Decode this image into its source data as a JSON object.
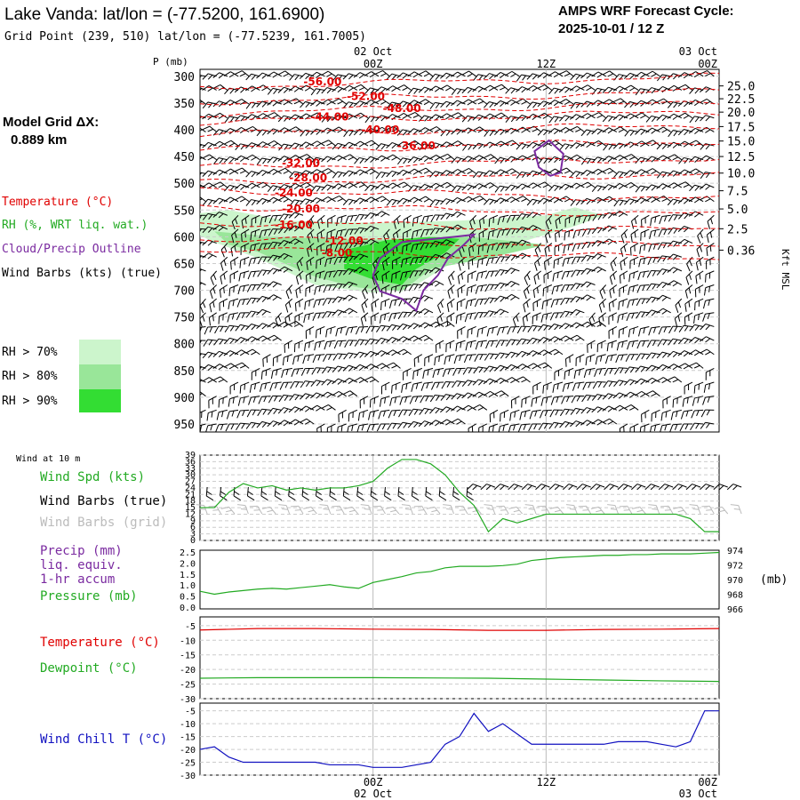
{
  "header": {
    "title": "Lake Vanda:  lat/lon = (-77.5200, 161.6900)",
    "subtitle": "Grid Point (239, 510) lat/lon = (-77.5239, 161.7005)",
    "cycle_title": "AMPS WRF Forecast Cycle:",
    "cycle_value": "2025-10-01 / 12  Z"
  },
  "side": {
    "model_grid_label": "Model Grid ΔX:",
    "model_grid_value": "0.889 km",
    "legend_temperature": "Temperature (°C)",
    "legend_rh": "RH (%, WRT liq. wat.)",
    "legend_cloud": "Cloud/Precip Outline",
    "legend_wind": "Wind Barbs (kts) (true)",
    "rh70": "RH > 70%",
    "rh80": "RH > 80%",
    "rh90": "RH > 90%",
    "wind_at": "Wind at 10 m",
    "wind_spd": "Wind Spd (kts)",
    "wind_barbs_true": "Wind Barbs (true)",
    "wind_barbs_grid": "Wind Barbs (grid)",
    "precip1": "Precip (mm)",
    "precip2": "liq. equiv.",
    "precip3": "1-hr accum",
    "pressure": "Pressure (mb)",
    "mb_unit": "(mb)",
    "temp": "Temperature (°C)",
    "dewpoint": "Dewpoint (°C)",
    "wind_chill": "Wind Chill T (°C)",
    "kft_label": "Kft MSL",
    "p_label": "P (mb)"
  },
  "colors": {
    "temp": "#e00000",
    "rh": "#22aa22",
    "cloud": "#7a2aa0",
    "chill": "#1010c0",
    "grid_barb": "#bbbbbb",
    "rh70": "#ccf5cc",
    "rh80": "#99e699",
    "rh90": "#33dd33"
  },
  "chart_data": [
    {
      "type": "time-height cross section",
      "time_labels": [
        {
          "hour": 12,
          "top": "02 Oct",
          "bottom": "00Z"
        },
        {
          "hour": 24,
          "top": "",
          "bottom": "12Z"
        },
        {
          "hour": 36,
          "top": "03 Oct",
          "bottom": "00Z"
        }
      ],
      "x_range_hours": [
        0,
        36
      ],
      "pressure_ticks": [
        "300",
        "350",
        "400",
        "450",
        "500",
        "550",
        "600",
        "650",
        "700",
        "750",
        "800",
        "850",
        "900",
        "950"
      ],
      "height_ticks": [
        {
          "p": 318,
          "label": "25.0"
        },
        {
          "p": 342,
          "label": "22.5"
        },
        {
          "p": 367,
          "label": "20.0"
        },
        {
          "p": 394,
          "label": "17.5"
        },
        {
          "p": 421,
          "label": "15.0"
        },
        {
          "p": 450,
          "label": "12.5"
        },
        {
          "p": 481,
          "label": "10.0"
        },
        {
          "p": 514,
          "label": "7.5"
        },
        {
          "p": 548,
          "label": "5.0"
        },
        {
          "p": 585,
          "label": "2.5"
        },
        {
          "p": 625,
          "label": "0.36"
        }
      ],
      "isotherms": [
        {
          "label": "-56.00",
          "p": 310
        },
        {
          "label": "-52.00",
          "p": 338
        },
        {
          "label": "-48.00",
          "p": 360
        },
        {
          "label": "-44.00",
          "p": 376
        },
        {
          "label": "-40.00",
          "p": 400
        },
        {
          "label": "-36.00",
          "p": 430
        },
        {
          "label": "-32.00",
          "p": 462
        },
        {
          "label": "-28.00",
          "p": 490
        },
        {
          "label": "-24.00",
          "p": 518
        },
        {
          "label": "-20.00",
          "p": 548
        },
        {
          "label": "-16.00",
          "p": 578
        },
        {
          "label": "-12.00",
          "p": 608
        },
        {
          "label": "-8.00",
          "p": 630
        }
      ],
      "rh_over_70_region": "approx. 560-710 mb from hour 0 to hour 27",
      "cloud_outlines": [
        "hour 12-19, 600-760 mb",
        "hour 23-25, 430-510 mb"
      ]
    },
    {
      "type": "line",
      "name": "10 m wind speed (kts)",
      "y_ticks": [
        "39",
        "36",
        "33",
        "30",
        "27",
        "24",
        "21",
        "18",
        "15",
        "12",
        "9",
        "6",
        "3",
        "0"
      ],
      "ylim": [
        0,
        39
      ],
      "x_hours": [
        0,
        1,
        2,
        3,
        4,
        5,
        6,
        7,
        8,
        9,
        10,
        11,
        12,
        13,
        14,
        15,
        16,
        17,
        18,
        19,
        20,
        21,
        22,
        23,
        24,
        25,
        26,
        27,
        28,
        29,
        30,
        31,
        32,
        33,
        34,
        35,
        36
      ],
      "values": [
        15,
        15,
        22,
        26,
        24,
        25,
        23,
        24,
        23,
        24,
        24,
        25,
        27,
        33,
        37,
        37,
        35,
        30,
        22,
        16,
        4,
        10,
        8,
        10,
        12,
        12,
        12,
        12,
        12,
        12,
        12,
        12,
        12,
        12,
        10,
        4,
        4
      ]
    },
    {
      "type": "line",
      "name": "Precip (mm) / Pressure (mb)",
      "precip_ticks": [
        "2.5",
        "2.0",
        "1.5",
        "1.0",
        "0.5",
        "0.0"
      ],
      "pressure_ticks": [
        "974",
        "972",
        "970",
        "968",
        "966"
      ],
      "pressure_range": [
        966,
        974
      ],
      "x_hours": [
        0,
        1,
        2,
        3,
        4,
        5,
        6,
        7,
        8,
        9,
        10,
        11,
        12,
        13,
        14,
        15,
        16,
        17,
        18,
        19,
        20,
        21,
        22,
        23,
        24,
        25,
        26,
        27,
        28,
        29,
        30,
        31,
        32,
        33,
        34,
        35,
        36
      ],
      "pressure_values": [
        968.4,
        968.0,
        968.3,
        968.5,
        968.7,
        968.8,
        968.7,
        968.9,
        969.1,
        969.3,
        969.0,
        968.8,
        969.6,
        970.0,
        970.4,
        970.9,
        971.1,
        971.6,
        971.8,
        971.8,
        971.8,
        971.9,
        972.1,
        972.6,
        972.8,
        973.0,
        973.1,
        973.2,
        973.3,
        973.3,
        973.4,
        973.4,
        973.5,
        973.5,
        973.5,
        973.6,
        973.7
      ]
    },
    {
      "type": "line",
      "name": "Temperature / Dewpoint (°C)",
      "y_ticks": [
        "-5",
        "-10",
        "-15",
        "-20",
        "-25",
        "-30"
      ],
      "ylim": [
        -30,
        -2
      ],
      "x_hours": [
        0,
        4,
        8,
        12,
        16,
        20,
        24,
        28,
        32,
        36
      ],
      "temperature": [
        -6.5,
        -6.0,
        -6.0,
        -6.2,
        -6.3,
        -6.6,
        -6.6,
        -6.3,
        -6.2,
        -6.0
      ],
      "dewpoint": [
        -23.0,
        -22.8,
        -22.8,
        -22.8,
        -22.9,
        -23.0,
        -23.3,
        -23.6,
        -23.9,
        -24.1
      ]
    },
    {
      "type": "line",
      "name": "Wind Chill T (°C)",
      "y_ticks": [
        "-5",
        "-10",
        "-15",
        "-20",
        "-25",
        "-30"
      ],
      "ylim": [
        -30,
        -2
      ],
      "x_hours": [
        0,
        1,
        2,
        3,
        4,
        5,
        6,
        7,
        8,
        9,
        10,
        11,
        12,
        13,
        14,
        15,
        16,
        17,
        18,
        19,
        20,
        21,
        22,
        23,
        24,
        25,
        26,
        27,
        28,
        29,
        30,
        31,
        32,
        33,
        34,
        35,
        36
      ],
      "values": [
        -20,
        -19,
        -23,
        -25,
        -25,
        -25,
        -25,
        -25,
        -25,
        -26,
        -26,
        -26,
        -27,
        -27,
        -27,
        -26,
        -25,
        -18,
        -15,
        -6,
        -13,
        -10,
        -14,
        -18,
        -18,
        -18,
        -18,
        -18,
        -18,
        -17,
        -17,
        -17,
        -18,
        -19,
        -17,
        -5,
        -5
      ]
    }
  ]
}
